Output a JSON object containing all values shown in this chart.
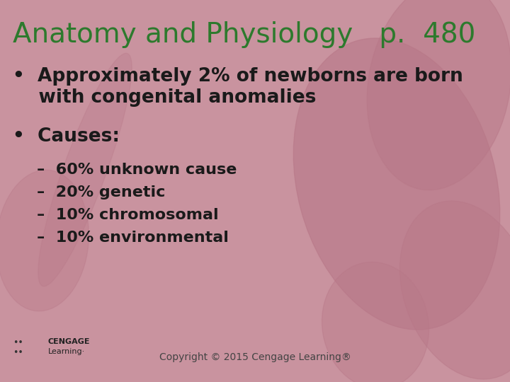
{
  "title": "Anatomy and Physiology   p.  480",
  "title_color": "#2d7a2d",
  "bg_color": "#c9939f",
  "blob_color": "#b87888",
  "bullet1_line1": "•  Approximately 2% of newborns are born",
  "bullet1_line2": "    with congenital anomalies",
  "bullet2": "•  Causes:",
  "sub_items": [
    "–  60% unknown cause",
    "–  20% genetic",
    "–  10% chromosomal",
    "–  10% environmental"
  ],
  "text_color": "#1a1a1a",
  "copyright": "Copyright © 2015 Cengage Learning®",
  "copyright_color": "#444444",
  "title_fontsize": 28,
  "bullet_fontsize": 19,
  "sub_fontsize": 16,
  "copyright_fontsize": 10
}
